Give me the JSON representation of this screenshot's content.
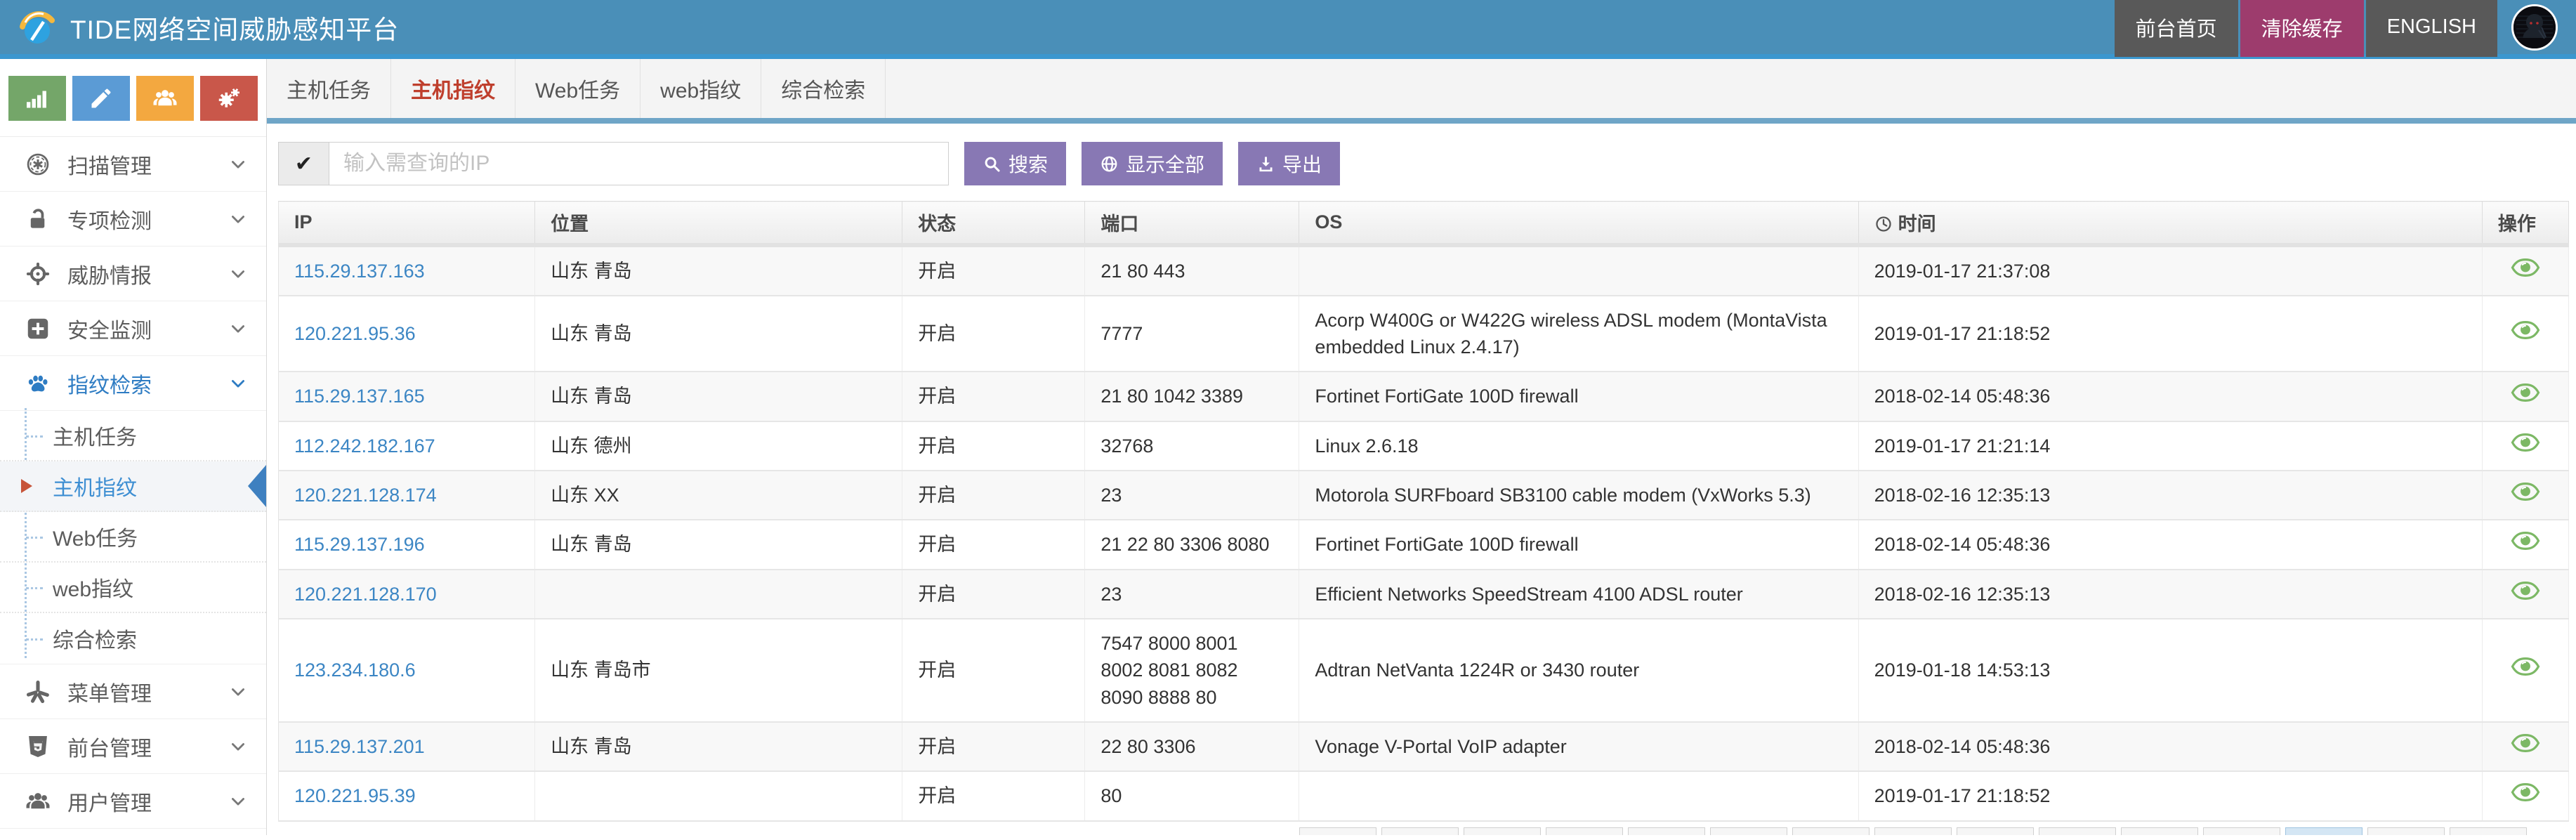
{
  "header": {
    "title": "TIDE网络空间威胁感知平台",
    "nav": [
      {
        "id": "front-home",
        "label": "前台首页"
      },
      {
        "id": "clear-cache",
        "label": "清除缓存"
      },
      {
        "id": "english",
        "label": "ENGLISH"
      }
    ]
  },
  "sidebar": {
    "quick_buttons": [
      {
        "id": "stats",
        "icon": "bar-chart-icon",
        "color": "#74a669"
      },
      {
        "id": "edit",
        "icon": "pencil-icon",
        "color": "#5b9bd5"
      },
      {
        "id": "users",
        "icon": "group-icon",
        "color": "#f3a840"
      },
      {
        "id": "settings",
        "icon": "gears-icon",
        "color": "#c9574a"
      }
    ],
    "items": [
      {
        "id": "scan",
        "icon": "scan-icon",
        "label": "扫描管理",
        "active": false
      },
      {
        "id": "special-detect",
        "icon": "unlock-icon",
        "label": "专项检测",
        "active": false
      },
      {
        "id": "threat-intel",
        "icon": "crosshair-icon",
        "label": "威胁情报",
        "active": false
      },
      {
        "id": "security-monitor",
        "icon": "plus-square-icon",
        "label": "安全监测",
        "active": false
      },
      {
        "id": "fingerprint",
        "icon": "paw-icon",
        "label": "指纹检索",
        "active": true,
        "children": [
          {
            "id": "host-task",
            "label": "主机任务",
            "active": false
          },
          {
            "id": "host-fingerprint",
            "label": "主机指纹",
            "active": true
          },
          {
            "id": "web-task",
            "label": "Web任务",
            "active": false
          },
          {
            "id": "web-fingerprint",
            "label": "web指纹",
            "active": false
          },
          {
            "id": "combined-search",
            "label": "综合检索",
            "active": false
          }
        ]
      },
      {
        "id": "menu-manage",
        "icon": "burst-icon",
        "label": "菜单管理",
        "active": false
      },
      {
        "id": "front-manage",
        "icon": "html5-icon",
        "label": "前台管理",
        "active": false
      },
      {
        "id": "user-manage",
        "icon": "users-icon",
        "label": "用户管理",
        "active": false
      }
    ]
  },
  "tabs": [
    {
      "id": "host-task",
      "label": "主机任务",
      "active": false
    },
    {
      "id": "host-fingerprint",
      "label": "主机指纹",
      "active": true
    },
    {
      "id": "web-task",
      "label": "Web任务",
      "active": false
    },
    {
      "id": "web-fingerprint",
      "label": "web指纹",
      "active": false
    },
    {
      "id": "combined-search",
      "label": "综合检索",
      "active": false
    }
  ],
  "search": {
    "check": "✔",
    "placeholder": "输入需查询的IP",
    "value": "",
    "buttons": [
      {
        "id": "search",
        "icon": "search-icon",
        "label": "搜索"
      },
      {
        "id": "show-all",
        "icon": "globe-icon",
        "label": "显示全部"
      },
      {
        "id": "export",
        "icon": "download-icon",
        "label": "导出"
      }
    ]
  },
  "table": {
    "columns": [
      {
        "key": "ip",
        "label": "IP"
      },
      {
        "key": "location",
        "label": "位置"
      },
      {
        "key": "status",
        "label": "状态"
      },
      {
        "key": "ports",
        "label": "端口"
      },
      {
        "key": "os",
        "label": "OS"
      },
      {
        "key": "time",
        "label": "时间",
        "icon": "clock-icon"
      },
      {
        "key": "action",
        "label": "操作"
      }
    ],
    "action_icon": "eye-icon",
    "rows": [
      {
        "ip": "115.29.137.163",
        "location": "山东 青岛",
        "status": "开启",
        "ports": "21 80 443",
        "os": "",
        "time": "2019-01-17 21:37:08"
      },
      {
        "ip": "120.221.95.36",
        "location": "山东 青岛",
        "status": "开启",
        "ports": "7777",
        "os": "Acorp W400G or W422G wireless ADSL modem (MontaVista embedded Linux 2.4.17)",
        "time": "2019-01-17 21:18:52"
      },
      {
        "ip": "115.29.137.165",
        "location": "山东 青岛",
        "status": "开启",
        "ports": "21 80 1042 3389",
        "os": "Fortinet FortiGate 100D firewall",
        "time": "2018-02-14 05:48:36"
      },
      {
        "ip": "112.242.182.167",
        "location": "山东 德州",
        "status": "开启",
        "ports": "32768",
        "os": "Linux 2.6.18",
        "time": "2019-01-17 21:21:14"
      },
      {
        "ip": "120.221.128.174",
        "location": "山东 XX",
        "status": "开启",
        "ports": "23",
        "os": "Motorola SURFboard SB3100 cable modem (VxWorks 5.3)",
        "time": "2018-02-16 12:35:13"
      },
      {
        "ip": "115.29.137.196",
        "location": "山东 青岛",
        "status": "开启",
        "ports": "21 22 80 3306 8080",
        "os": "Fortinet FortiGate 100D firewall",
        "time": "2018-02-14 05:48:36"
      },
      {
        "ip": "120.221.128.170",
        "location": "",
        "status": "开启",
        "ports": "23",
        "os": "Efficient Networks SpeedStream 4100 ADSL router",
        "time": "2018-02-16 12:35:13"
      },
      {
        "ip": "123.234.180.6",
        "location": "山东 青岛市",
        "status": "开启",
        "ports": "7547 8000 8001 8002 8081 8082 8090 8888 80",
        "os": "Adtran NetVanta 1224R or 3430 router",
        "time": "2019-01-18 14:53:13"
      },
      {
        "ip": "115.29.137.201",
        "location": "山东 青岛",
        "status": "开启",
        "ports": "22 80 3306",
        "os": "Vonage V-Portal VoIP adapter",
        "time": "2018-02-14 05:48:36"
      },
      {
        "ip": "120.221.95.39",
        "location": "",
        "status": "开启",
        "ports": "80",
        "os": "",
        "time": "2019-01-17 21:18:52"
      }
    ]
  },
  "colors": {
    "header_bg": "#4a8fb8",
    "header_accent_line": "#3b97cf",
    "tab_underline": "#6fa5c7",
    "nav_dark": "#595959",
    "nav_magenta": "#9d3c6d",
    "button_purple": "#8878b4",
    "active_tab_red": "#bf3f2d",
    "sidebar_active_blue": "#2e7cc3",
    "subitem_active_blue": "#3d8ed2",
    "active_caret_orange": "#c75439",
    "link_blue": "#3c86c4",
    "eye_green": "#7cb865",
    "quick_green": "#74a669",
    "quick_blue": "#5b9bd5",
    "quick_orange": "#f3a840",
    "quick_red": "#c9574a"
  }
}
